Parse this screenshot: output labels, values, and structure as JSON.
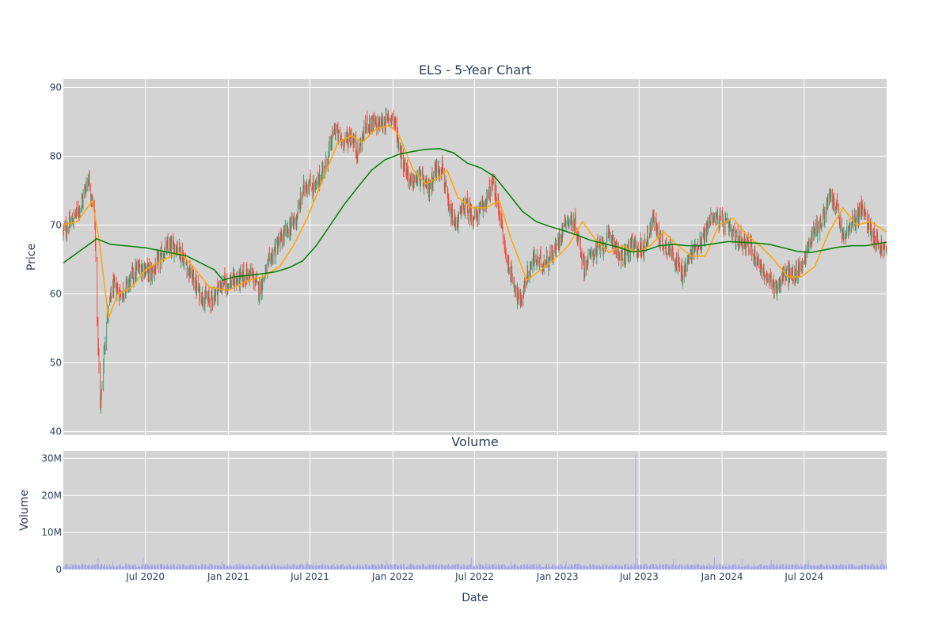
{
  "chart_data": [
    {
      "type": "candlestick",
      "title": "ELS - 5-Year Chart",
      "xlabel": "",
      "ylabel": "Price",
      "ylim": [
        39.5,
        91.2
      ],
      "y_ticks": [
        40,
        50,
        60,
        70,
        80,
        90
      ],
      "x_range": [
        "2020-01-01",
        "2024-12-31"
      ],
      "x_ticks": [
        {
          "date": "2020-07-01",
          "label": "Jul 2020"
        },
        {
          "date": "2021-01-01",
          "label": "Jan 2021"
        },
        {
          "date": "2021-07-01",
          "label": "Jul 2021"
        },
        {
          "date": "2022-01-01",
          "label": "Jan 2022"
        },
        {
          "date": "2022-07-01",
          "label": "Jul 2022"
        },
        {
          "date": "2023-01-01",
          "label": "Jan 2023"
        },
        {
          "date": "2023-07-01",
          "label": "Jul 2023"
        },
        {
          "date": "2024-01-01",
          "label": "Jan 2024"
        },
        {
          "date": "2024-07-01",
          "label": "Jul 2024"
        }
      ],
      "grid": true,
      "legend": false,
      "colors": {
        "up": "#3d9970",
        "down": "#ff4136",
        "ma_short": "#ffa500",
        "ma_long": "#008000",
        "plot_bg": "#d3d3d3"
      },
      "price_path": [
        [
          "2020-01-01",
          69
        ],
        [
          "2020-01-20",
          70.5
        ],
        [
          "2020-02-10",
          73
        ],
        [
          "2020-02-25",
          77
        ],
        [
          "2020-03-10",
          72
        ],
        [
          "2020-03-17",
          55
        ],
        [
          "2020-03-23",
          43
        ],
        [
          "2020-04-05",
          56
        ],
        [
          "2020-04-20",
          61
        ],
        [
          "2020-05-10",
          60
        ],
        [
          "2020-06-01",
          62.5
        ],
        [
          "2020-06-20",
          64
        ],
        [
          "2020-07-15",
          63
        ],
        [
          "2020-08-15",
          66.5
        ],
        [
          "2020-09-10",
          67
        ],
        [
          "2020-10-01",
          64
        ],
        [
          "2020-10-30",
          60
        ],
        [
          "2020-11-20",
          59
        ],
        [
          "2020-12-20",
          61.5
        ],
        [
          "2021-01-20",
          62
        ],
        [
          "2021-02-20",
          63
        ],
        [
          "2021-03-10",
          60.5
        ],
        [
          "2021-04-10",
          66
        ],
        [
          "2021-05-10",
          69
        ],
        [
          "2021-06-01",
          71
        ],
        [
          "2021-06-20",
          76
        ],
        [
          "2021-07-15",
          75.5
        ],
        [
          "2021-08-10",
          80
        ],
        [
          "2021-08-25",
          84
        ],
        [
          "2021-09-10",
          82
        ],
        [
          "2021-10-01",
          83
        ],
        [
          "2021-10-15",
          80.5
        ],
        [
          "2021-11-05",
          85
        ],
        [
          "2021-11-25",
          84.5
        ],
        [
          "2021-12-15",
          85
        ],
        [
          "2022-01-01",
          86
        ],
        [
          "2022-01-20",
          80
        ],
        [
          "2022-02-10",
          76
        ],
        [
          "2022-03-01",
          77
        ],
        [
          "2022-03-20",
          75
        ],
        [
          "2022-04-05",
          78
        ],
        [
          "2022-04-20",
          78.5
        ],
        [
          "2022-05-05",
          72
        ],
        [
          "2022-05-20",
          70
        ],
        [
          "2022-06-10",
          73
        ],
        [
          "2022-06-30",
          71
        ],
        [
          "2022-07-15",
          72
        ],
        [
          "2022-08-10",
          76
        ],
        [
          "2022-08-25",
          72
        ],
        [
          "2022-09-10",
          65
        ],
        [
          "2022-09-25",
          62
        ],
        [
          "2022-10-10",
          58.5
        ],
        [
          "2022-10-25",
          62.5
        ],
        [
          "2022-11-10",
          65
        ],
        [
          "2022-12-01",
          64.5
        ],
        [
          "2022-12-25",
          66
        ],
        [
          "2023-01-20",
          71
        ],
        [
          "2023-02-10",
          70
        ],
        [
          "2023-03-01",
          64
        ],
        [
          "2023-03-20",
          66
        ],
        [
          "2023-04-10",
          67
        ],
        [
          "2023-05-01",
          68.5
        ],
        [
          "2023-05-20",
          65
        ],
        [
          "2023-06-15",
          67
        ],
        [
          "2023-07-10",
          66.5
        ],
        [
          "2023-08-01",
          71
        ],
        [
          "2023-08-20",
          67.5
        ],
        [
          "2023-09-15",
          66
        ],
        [
          "2023-10-05",
          62.5
        ],
        [
          "2023-10-25",
          66
        ],
        [
          "2023-11-20",
          68
        ],
        [
          "2023-12-10",
          71.5
        ],
        [
          "2024-01-10",
          70
        ],
        [
          "2024-02-01",
          68
        ],
        [
          "2024-02-25",
          67.5
        ],
        [
          "2024-03-20",
          65
        ],
        [
          "2024-04-10",
          62
        ],
        [
          "2024-05-01",
          61
        ],
        [
          "2024-05-20",
          63
        ],
        [
          "2024-06-10",
          62.5
        ],
        [
          "2024-07-01",
          65
        ],
        [
          "2024-07-20",
          69
        ],
        [
          "2024-08-10",
          70.5
        ],
        [
          "2024-08-25",
          74
        ],
        [
          "2024-09-10",
          73
        ],
        [
          "2024-09-25",
          68
        ],
        [
          "2024-10-15",
          70
        ],
        [
          "2024-11-05",
          72.5
        ],
        [
          "2024-11-25",
          69.5
        ],
        [
          "2024-12-15",
          67
        ],
        [
          "2024-12-31",
          66
        ]
      ],
      "ma_short": [
        [
          "2020-01-01",
          70
        ],
        [
          "2020-02-01",
          70.5
        ],
        [
          "2020-03-05",
          73.5
        ],
        [
          "2020-03-20",
          68
        ],
        [
          "2020-04-10",
          56.5
        ],
        [
          "2020-05-01",
          60
        ],
        [
          "2020-06-01",
          61
        ],
        [
          "2020-07-01",
          63.5
        ],
        [
          "2020-08-10",
          65
        ],
        [
          "2020-09-15",
          66
        ],
        [
          "2020-10-15",
          64
        ],
        [
          "2020-11-20",
          61
        ],
        [
          "2021-01-01",
          60.5
        ],
        [
          "2021-02-15",
          62
        ],
        [
          "2021-03-20",
          62.5
        ],
        [
          "2021-04-25",
          64
        ],
        [
          "2021-05-25",
          67
        ],
        [
          "2021-06-25",
          71
        ],
        [
          "2021-08-01",
          77
        ],
        [
          "2021-09-01",
          82
        ],
        [
          "2021-10-01",
          83
        ],
        [
          "2021-10-25",
          82
        ],
        [
          "2021-11-25",
          84
        ],
        [
          "2021-12-25",
          84.5
        ],
        [
          "2022-01-15",
          83
        ],
        [
          "2022-02-15",
          78
        ],
        [
          "2022-03-15",
          76
        ],
        [
          "2022-04-15",
          77
        ],
        [
          "2022-05-01",
          78
        ],
        [
          "2022-05-25",
          74
        ],
        [
          "2022-06-25",
          72.5
        ],
        [
          "2022-07-25",
          72.5
        ],
        [
          "2022-08-25",
          73.5
        ],
        [
          "2022-09-20",
          68
        ],
        [
          "2022-10-25",
          62
        ],
        [
          "2022-11-25",
          63.5
        ],
        [
          "2022-12-25",
          65
        ],
        [
          "2023-01-25",
          67
        ],
        [
          "2023-02-25",
          70.5
        ],
        [
          "2023-03-25",
          68
        ],
        [
          "2023-04-25",
          66
        ],
        [
          "2023-05-25",
          67
        ],
        [
          "2023-06-25",
          66
        ],
        [
          "2023-07-25",
          67
        ],
        [
          "2023-08-25",
          69
        ],
        [
          "2023-09-25",
          67
        ],
        [
          "2023-10-25",
          65.5
        ],
        [
          "2023-11-25",
          65.5
        ],
        [
          "2023-12-25",
          70
        ],
        [
          "2024-01-25",
          71
        ],
        [
          "2024-02-25",
          68.5
        ],
        [
          "2024-03-25",
          67
        ],
        [
          "2024-04-25",
          65
        ],
        [
          "2024-05-25",
          62.5
        ],
        [
          "2024-06-25",
          62.5
        ],
        [
          "2024-07-25",
          64
        ],
        [
          "2024-08-25",
          69
        ],
        [
          "2024-09-25",
          72.5
        ],
        [
          "2024-10-25",
          70
        ],
        [
          "2024-11-25",
          70.5
        ],
        [
          "2024-12-31",
          69
        ]
      ],
      "ma_long": [
        [
          "2020-01-01",
          64.5
        ],
        [
          "2020-03-15",
          68
        ],
        [
          "2020-04-15",
          67.2
        ],
        [
          "2020-07-01",
          66.7
        ],
        [
          "2020-10-01",
          65.5
        ],
        [
          "2020-12-01",
          63.5
        ],
        [
          "2020-12-20",
          62
        ],
        [
          "2021-01-15",
          62.5
        ],
        [
          "2021-03-01",
          62.8
        ],
        [
          "2021-04-15",
          63.2
        ],
        [
          "2021-05-15",
          63.8
        ],
        [
          "2021-06-15",
          64.8
        ],
        [
          "2021-07-15",
          67
        ],
        [
          "2021-08-15",
          70
        ],
        [
          "2021-09-15",
          73
        ],
        [
          "2021-10-15",
          75.5
        ],
        [
          "2021-11-15",
          78
        ],
        [
          "2021-12-15",
          79.5
        ],
        [
          "2022-01-15",
          80.3
        ],
        [
          "2022-02-15",
          80.7
        ],
        [
          "2022-03-15",
          81
        ],
        [
          "2022-04-15",
          81.1
        ],
        [
          "2022-05-15",
          80.5
        ],
        [
          "2022-06-15",
          79
        ],
        [
          "2022-07-15",
          78.3
        ],
        [
          "2022-08-15",
          77
        ],
        [
          "2022-09-15",
          74.5
        ],
        [
          "2022-10-15",
          72
        ],
        [
          "2022-11-15",
          70.5
        ],
        [
          "2022-12-15",
          69.8
        ],
        [
          "2023-01-15",
          69.2
        ],
        [
          "2023-02-15",
          68.5
        ],
        [
          "2023-03-15",
          67.8
        ],
        [
          "2023-04-15",
          67.3
        ],
        [
          "2023-05-15",
          66.8
        ],
        [
          "2023-06-15",
          66.1
        ],
        [
          "2023-07-15",
          66.3
        ],
        [
          "2023-08-15",
          67
        ],
        [
          "2023-09-15",
          67.2
        ],
        [
          "2023-10-15",
          67
        ],
        [
          "2023-11-15",
          67
        ],
        [
          "2023-12-15",
          67.3
        ],
        [
          "2024-01-15",
          67.6
        ],
        [
          "2024-02-15",
          67.5
        ],
        [
          "2024-03-15",
          67.4
        ],
        [
          "2024-04-15",
          67.2
        ],
        [
          "2024-05-15",
          66.7
        ],
        [
          "2024-06-15",
          66.2
        ],
        [
          "2024-07-15",
          66
        ],
        [
          "2024-08-15",
          66.4
        ],
        [
          "2024-09-15",
          66.8
        ],
        [
          "2024-10-15",
          67
        ],
        [
          "2024-11-15",
          67
        ],
        [
          "2024-12-31",
          67.5
        ]
      ]
    },
    {
      "type": "bar",
      "title": "Volume",
      "xlabel": "Date",
      "ylabel": "Volume",
      "ylim": [
        0,
        32000000
      ],
      "y_ticks": [
        {
          "value": 0,
          "label": "0"
        },
        {
          "value": 10000000,
          "label": "10M"
        },
        {
          "value": 20000000,
          "label": "20M"
        },
        {
          "value": 30000000,
          "label": "30M"
        }
      ],
      "x_range": [
        "2020-01-01",
        "2024-12-31"
      ],
      "typical_volume": 1100000,
      "spikes": [
        [
          "2020-03-18",
          3000000
        ],
        [
          "2020-04-20",
          2200000
        ],
        [
          "2020-06-26",
          3200000
        ],
        [
          "2020-12-18",
          2300000
        ],
        [
          "2021-06-25",
          2000000
        ],
        [
          "2021-12-17",
          2400000
        ],
        [
          "2022-06-24",
          3200000
        ],
        [
          "2022-09-20",
          2400000
        ],
        [
          "2023-01-20",
          2200000
        ],
        [
          "2023-06-23",
          31000000
        ],
        [
          "2023-06-27",
          3000000
        ],
        [
          "2023-09-15",
          2800000
        ],
        [
          "2023-12-15",
          3400000
        ],
        [
          "2024-02-15",
          2800000
        ],
        [
          "2024-04-19",
          2600000
        ],
        [
          "2024-07-10",
          2700000
        ],
        [
          "2024-12-20",
          2600000
        ]
      ],
      "colors": {
        "bar": "#9ea3ea",
        "plot_bg": "#d3d3d3"
      }
    }
  ]
}
